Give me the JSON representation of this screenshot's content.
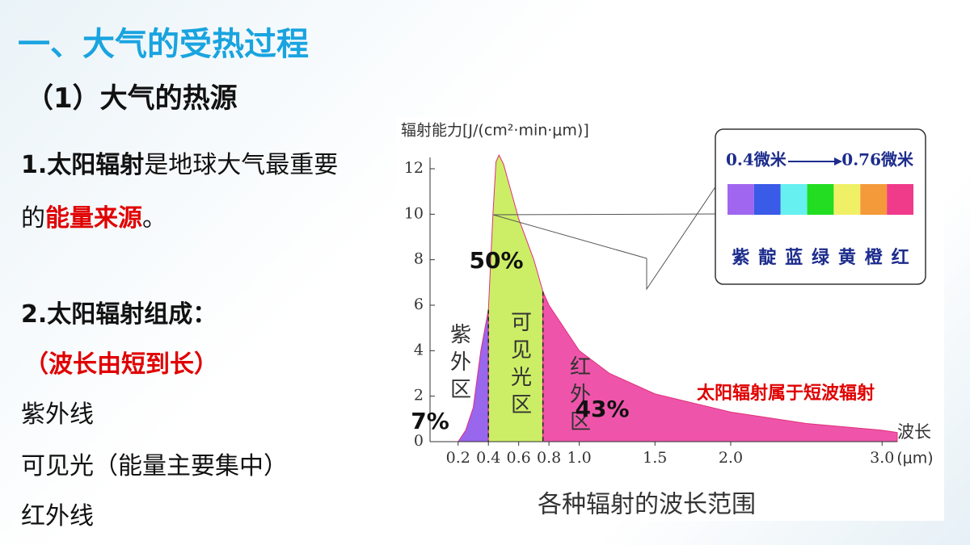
{
  "slide": {
    "title": "一、大气的受热过程",
    "subtitle": "（1）大气的热源",
    "para1": [
      "1.太阳辐射",
      "是地球大气最重要的",
      "能量来源",
      "。"
    ],
    "para2": "2.太阳辐射组成：",
    "order": "（波长由短到长）",
    "items": [
      "紫外线",
      "可见光（能量主要集中）",
      "红外线"
    ]
  },
  "chart_data": {
    "type": "area",
    "ylabel": "辐射能力[J/(cm²·min·μm)]",
    "xlabel": "波长",
    "x_unit": "(μm)",
    "caption": "各种辐射的波长范围",
    "annotation": "太阳辐射属于短波辐射",
    "x": [
      0.2,
      0.25,
      0.3,
      0.35,
      0.4,
      0.43,
      0.45,
      0.47,
      0.5,
      0.55,
      0.6,
      0.7,
      0.76,
      0.8,
      1.0,
      1.2,
      1.5,
      2.0,
      2.5,
      3.0,
      3.1
    ],
    "values": [
      0,
      0.5,
      1.5,
      4,
      5.8,
      10,
      12.3,
      12.6,
      12.2,
      11,
      9.8,
      8,
      6.6,
      6,
      4,
      3,
      2.1,
      1.3,
      0.8,
      0.5,
      0.4
    ],
    "regions": [
      {
        "name": "紫外区",
        "percent": "7%",
        "from": 0.2,
        "to": 0.4,
        "color": "#9966ee"
      },
      {
        "name": "可见光区",
        "percent": "50%",
        "from": 0.4,
        "to": 0.76,
        "color": "#ccee66"
      },
      {
        "name": "红外区",
        "percent": "43%",
        "from": 0.76,
        "to": 3.1,
        "color": "#ee55aa"
      }
    ],
    "xlim": [
      0.1,
      3.1
    ],
    "ylim": [
      0,
      12
    ],
    "xticks": [
      0.2,
      0.4,
      0.6,
      0.8,
      {
        "value": 1,
        "label": "1.0"
      },
      1.5,
      {
        "value": 2,
        "label": "2.0"
      },
      {
        "value": 3,
        "label": "3.0"
      }
    ],
    "yticks": [
      0,
      2,
      4,
      6,
      8,
      10,
      12
    ]
  },
  "spectrum": {
    "start": "0.4微米",
    "end": "0.76微米",
    "colors": [
      {
        "name": "紫",
        "color": "#a066f0"
      },
      {
        "name": "靛",
        "color": "#3a5ae8"
      },
      {
        "name": "蓝",
        "color": "#66f0f0"
      },
      {
        "name": "绿",
        "color": "#22dd22"
      },
      {
        "name": "黄",
        "color": "#f0f066"
      },
      {
        "name": "橙",
        "color": "#f59a3a"
      },
      {
        "name": "红",
        "color": "#f03a8a"
      }
    ]
  }
}
